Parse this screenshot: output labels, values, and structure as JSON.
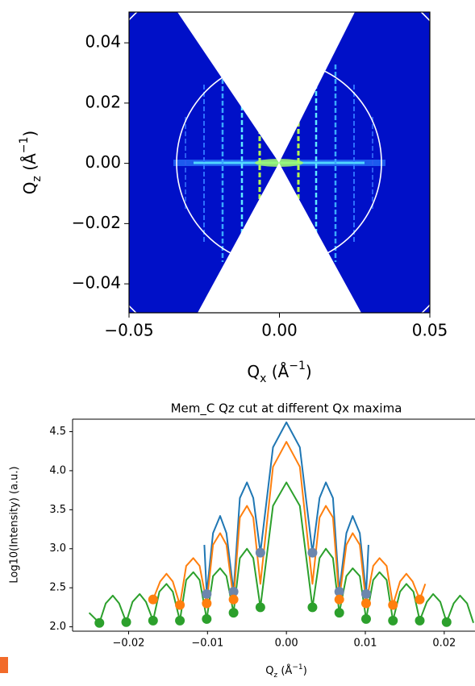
{
  "chart_data": [
    {
      "type": "heatmap",
      "xlabel": [
        "Q",
        "x",
        " (Å",
        "−1",
        ")"
      ],
      "ylabel": [
        "Q",
        "z",
        " (Å",
        "−1",
        ")"
      ],
      "xlim": [
        -0.05,
        0.05
      ],
      "ylim": [
        -0.0496,
        0.0502
      ],
      "xticks": [
        {
          "value": -0.05,
          "label": "−0.05"
        },
        {
          "value": 0,
          "label": "0.00"
        },
        0.05
      ],
      "yticks": [
        0.04,
        0.02,
        {
          "value": 0,
          "label": "0.00"
        },
        {
          "value": -0.02,
          "label": "−0.02"
        },
        {
          "value": -0.04,
          "label": "−0.04"
        }
      ]
    },
    {
      "type": "line",
      "title": "Mem_C Qz cut at different Qx maxima",
      "xlabel": [
        "Q",
        "z",
        " (Å",
        "−1",
        ")"
      ],
      "ylabel": "Log10(Intensity) (a.u.)",
      "xlim": [
        -0.0271,
        0.0239
      ],
      "ylim": [
        1.944,
        4.66
      ],
      "xticks": [
        {
          "value": -0.02,
          "label": "−0.02"
        },
        {
          "value": -0.01,
          "label": "−0.01"
        },
        {
          "value": 0,
          "label": "0.00"
        },
        0.01,
        0.02
      ],
      "yticks": [
        {
          "value": 2,
          "label": "2.0"
        },
        2.5,
        {
          "value": 3,
          "label": "3.0"
        },
        3.5,
        {
          "value": 4,
          "label": "4.0"
        },
        4.5
      ],
      "series": [
        {
          "kind": "line",
          "color": "#1f77b4",
          "x": [
            -0.0104,
            -0.0101,
            -0.0093,
            -0.0084,
            -0.0076,
            -0.0067,
            -0.0059,
            -0.005,
            -0.0042,
            -0.0033,
            -0.0017,
            0,
            0.0017,
            0.0033,
            0.0042,
            0.005,
            0.0059,
            0.0067,
            0.0076,
            0.0084,
            0.0093,
            0.0101,
            0.0104
          ],
          "values": [
            3.05,
            2.42,
            3.2,
            3.42,
            3.2,
            2.45,
            3.65,
            3.85,
            3.65,
            2.95,
            4.3,
            4.62,
            4.3,
            2.95,
            3.65,
            3.85,
            3.65,
            2.45,
            3.2,
            3.42,
            3.2,
            2.42,
            3.05
          ]
        },
        {
          "kind": "line",
          "color": "#ff7f0e",
          "x": [
            -0.0173,
            -0.0169,
            -0.016,
            -0.0152,
            -0.0144,
            -0.0135,
            -0.0127,
            -0.0118,
            -0.011,
            -0.0101,
            -0.0093,
            -0.0084,
            -0.0076,
            -0.0067,
            -0.0059,
            -0.005,
            -0.0042,
            -0.0033,
            -0.0017,
            0,
            0.0017,
            0.0033,
            0.0042,
            0.005,
            0.0059,
            0.0067,
            0.0076,
            0.0084,
            0.0093,
            0.0101,
            0.011,
            0.0118,
            0.0127,
            0.0135,
            0.0144,
            0.0152,
            0.016,
            0.0169,
            0.0176
          ],
          "values": [
            2.38,
            2.35,
            2.58,
            2.68,
            2.58,
            2.28,
            2.78,
            2.88,
            2.78,
            2.3,
            3.05,
            3.2,
            3.05,
            2.35,
            3.4,
            3.55,
            3.4,
            2.55,
            4.05,
            4.37,
            4.05,
            2.55,
            3.4,
            3.55,
            3.4,
            2.35,
            3.05,
            3.2,
            3.05,
            2.3,
            2.78,
            2.88,
            2.78,
            2.28,
            2.58,
            2.68,
            2.58,
            2.35,
            2.55
          ]
        },
        {
          "kind": "line",
          "color": "#2ca02c",
          "x": [
            -0.025,
            -0.0237,
            -0.0229,
            -0.022,
            -0.0212,
            -0.0203,
            -0.0195,
            -0.0186,
            -0.0178,
            -0.0169,
            -0.0161,
            -0.0152,
            -0.0144,
            -0.0135,
            -0.0127,
            -0.0118,
            -0.011,
            -0.0101,
            -0.0093,
            -0.0084,
            -0.0076,
            -0.0067,
            -0.0059,
            -0.005,
            -0.0042,
            -0.0033,
            -0.0017,
            0,
            0.0017,
            0.0033,
            0.0042,
            0.005,
            0.0059,
            0.0067,
            0.0076,
            0.0084,
            0.0093,
            0.0101,
            0.011,
            0.0118,
            0.0127,
            0.0135,
            0.0144,
            0.0152,
            0.0161,
            0.0169,
            0.0178,
            0.0186,
            0.0195,
            0.0203,
            0.0212,
            0.022,
            0.0229,
            0.0237
          ],
          "values": [
            2.18,
            2.05,
            2.3,
            2.4,
            2.3,
            2.06,
            2.32,
            2.42,
            2.32,
            2.08,
            2.45,
            2.55,
            2.45,
            2.08,
            2.6,
            2.7,
            2.6,
            2.1,
            2.65,
            2.75,
            2.65,
            2.18,
            2.88,
            3.0,
            2.88,
            2.25,
            3.55,
            3.85,
            3.55,
            2.25,
            2.88,
            3.0,
            2.88,
            2.18,
            2.65,
            2.75,
            2.65,
            2.1,
            2.6,
            2.7,
            2.6,
            2.08,
            2.45,
            2.55,
            2.45,
            2.08,
            2.32,
            2.42,
            2.32,
            2.06,
            2.3,
            2.4,
            2.3,
            2.05
          ]
        },
        {
          "kind": "dots",
          "color": "#6c86ad",
          "x": [
            -0.0101,
            -0.0067,
            -0.0033,
            0.0033,
            0.0067,
            0.0101
          ],
          "values": [
            2.42,
            2.45,
            2.95,
            2.95,
            2.45,
            2.42
          ]
        },
        {
          "kind": "dots",
          "color": "#ff7f0e",
          "x": [
            -0.0169,
            -0.0135,
            -0.0101,
            -0.0067,
            0.0067,
            0.0101,
            0.0135,
            0.0169
          ],
          "values": [
            2.35,
            2.28,
            2.3,
            2.35,
            2.35,
            2.3,
            2.28,
            2.35
          ]
        },
        {
          "kind": "dots",
          "color": "#2ca02c",
          "x": [
            -0.0237,
            -0.0203,
            -0.0169,
            -0.0135,
            -0.0101,
            -0.0067,
            -0.0033,
            0.0033,
            0.0067,
            0.0101,
            0.0135,
            0.0169,
            0.0203
          ],
          "values": [
            2.05,
            2.06,
            2.08,
            2.08,
            2.1,
            2.18,
            2.25,
            2.25,
            2.18,
            2.1,
            2.08,
            2.08,
            2.06
          ]
        }
      ]
    }
  ]
}
